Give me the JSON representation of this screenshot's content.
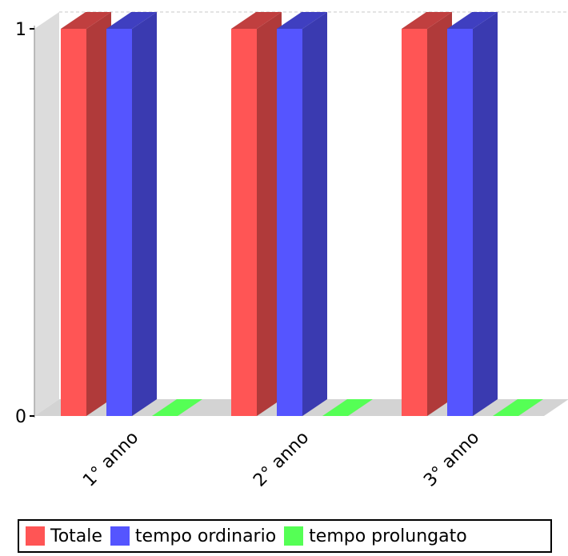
{
  "chart_data": {
    "type": "bar",
    "categories": [
      "1° anno",
      "2° anno",
      "3° anno"
    ],
    "series": [
      {
        "name": "Totale",
        "values": [
          1,
          1,
          1
        ],
        "color": "#ff5555",
        "side_color": "#b03a3a",
        "top_color": "#c03f3f"
      },
      {
        "name": "tempo ordinario",
        "values": [
          1,
          1,
          1
        ],
        "color": "#5555ff",
        "side_color": "#3a3ab0",
        "top_color": "#3f3fc0"
      },
      {
        "name": "tempo prolungato",
        "values": [
          0,
          0,
          0
        ],
        "color": "#55ff55",
        "side_color": "#3ab03a",
        "top_color": "#3fc03f"
      }
    ],
    "y_ticks": [
      0,
      1
    ],
    "ylim": [
      0,
      1
    ],
    "grid": true,
    "three_d": true,
    "legend_position": "bottom"
  }
}
